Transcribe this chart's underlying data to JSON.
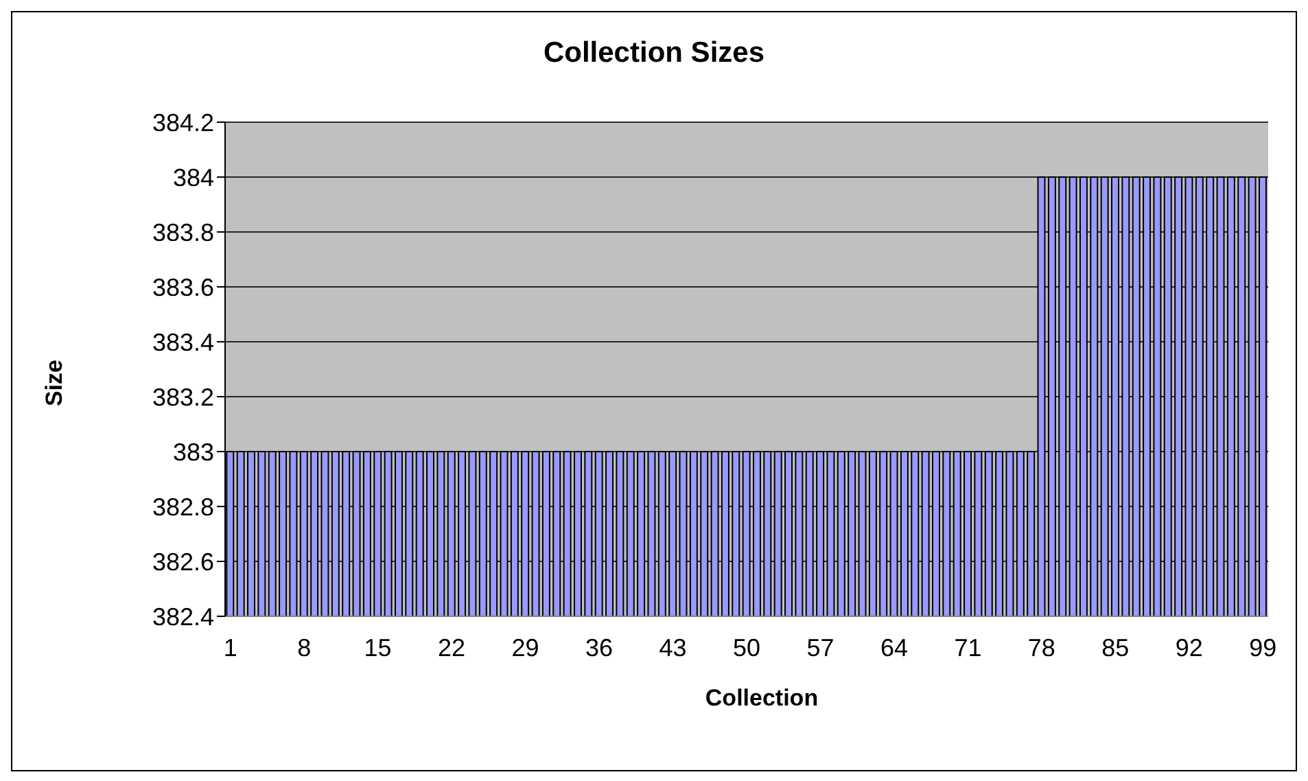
{
  "chart_data": {
    "type": "bar",
    "title": "Collection Sizes",
    "xlabel": "Collection",
    "ylabel": "Size",
    "categories": [
      "1",
      null,
      null,
      null,
      null,
      null,
      null,
      "8",
      null,
      null,
      null,
      null,
      null,
      null,
      "15",
      null,
      null,
      null,
      null,
      null,
      null,
      "22",
      null,
      null,
      null,
      null,
      null,
      null,
      "29",
      null,
      null,
      null,
      null,
      null,
      null,
      "36",
      null,
      null,
      null,
      null,
      null,
      null,
      "43",
      null,
      null,
      null,
      null,
      null,
      null,
      "50",
      null,
      null,
      null,
      null,
      null,
      null,
      "57",
      null,
      null,
      null,
      null,
      null,
      null,
      "64",
      null,
      null,
      null,
      null,
      null,
      null,
      "71",
      null,
      null,
      null,
      null,
      null,
      null,
      "78",
      null,
      null,
      null,
      null,
      null,
      null,
      "85",
      null,
      null,
      null,
      null,
      null,
      null,
      "92",
      null,
      null,
      null,
      null,
      null,
      null,
      "99"
    ],
    "values": [
      383,
      383,
      383,
      383,
      383,
      383,
      383,
      383,
      383,
      383,
      383,
      383,
      383,
      383,
      383,
      383,
      383,
      383,
      383,
      383,
      383,
      383,
      383,
      383,
      383,
      383,
      383,
      383,
      383,
      383,
      383,
      383,
      383,
      383,
      383,
      383,
      383,
      383,
      383,
      383,
      383,
      383,
      383,
      383,
      383,
      383,
      383,
      383,
      383,
      383,
      383,
      383,
      383,
      383,
      383,
      383,
      383,
      383,
      383,
      383,
      383,
      383,
      383,
      383,
      383,
      383,
      383,
      383,
      383,
      383,
      383,
      383,
      383,
      383,
      383,
      383,
      383,
      384,
      384,
      384,
      384,
      384,
      384,
      384,
      384,
      384,
      384,
      384,
      384,
      384,
      384,
      384,
      384,
      384,
      384,
      384,
      384,
      384,
      384
    ],
    "color": "#9999ff",
    "ylim": [
      382.4,
      384.2
    ],
    "yticks": [
      382.4,
      382.6,
      382.8,
      383,
      383.2,
      383.4,
      383.6,
      383.8,
      384,
      384.2
    ],
    "grid": "y",
    "legend": false
  }
}
